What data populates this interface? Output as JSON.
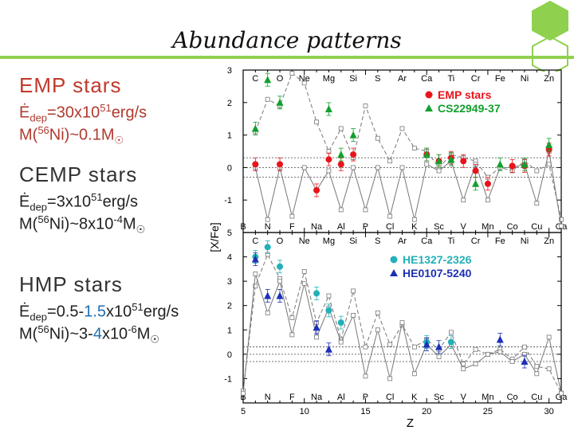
{
  "slide": {
    "title": "Abundance patterns",
    "accent_color": "#8fd14f",
    "emp": {
      "heading": "EMP stars",
      "edep_sym": "Ė",
      "edep_sub": "dep",
      "edep_mid": "=30x10",
      "edep_exp": "51",
      "edep_unit": "erg/s",
      "m_pre": "M(",
      "m_iso": "56",
      "m_post": "Ni)~0.1M",
      "sun": "☉"
    },
    "cemp": {
      "heading": "CEMP stars",
      "edep_sym": "Ė",
      "edep_sub": "dep",
      "edep_mid": "=3x10",
      "edep_exp": "51",
      "edep_unit": "erg/s",
      "m_pre": "M(",
      "m_iso": "56",
      "m_post": "Ni)~8x10",
      "m_exp": "-4",
      "m_unit": "M",
      "sun": "☉"
    },
    "hmp": {
      "heading": "HMP stars",
      "edep_sym": "Ė",
      "edep_sub": "dep",
      "edep_a": "=0.5-",
      "edep_b": "1.5",
      "edep_c": "x10",
      "edep_exp": "51",
      "edep_unit": "erg/s",
      "m_pre": "M(",
      "m_iso": "56",
      "m_post": "Ni)~3-",
      "m_b": "4",
      "m_c": "x10",
      "m_exp": "-6",
      "m_unit": "M",
      "sun": "☉"
    }
  },
  "chart_data": [
    {
      "type": "scatter",
      "panel": "top",
      "ylabel": "[X/Fe]",
      "xlabel": "",
      "xlim": [
        5,
        31
      ],
      "ylim": [
        -2,
        3
      ],
      "yticks": [
        -1,
        0,
        1,
        2,
        3
      ],
      "ytick_labels": [
        "-1",
        "0",
        "1",
        "2",
        "3"
      ],
      "reference_lines": [
        0.3,
        0,
        -0.3
      ],
      "elements_top": [
        {
          "z": 6,
          "s": "C"
        },
        {
          "z": 8,
          "s": "O"
        },
        {
          "z": 10,
          "s": "Ne"
        },
        {
          "z": 12,
          "s": "Mg"
        },
        {
          "z": 14,
          "s": "Si"
        },
        {
          "z": 16,
          "s": "S"
        },
        {
          "z": 18,
          "s": "Ar"
        },
        {
          "z": 20,
          "s": "Ca"
        },
        {
          "z": 22,
          "s": "Ti"
        },
        {
          "z": 24,
          "s": "Cr"
        },
        {
          "z": 26,
          "s": "Fe"
        },
        {
          "z": 28,
          "s": "Ni"
        },
        {
          "z": 30,
          "s": "Zn"
        }
      ],
      "elements_bottom": [
        {
          "z": 5,
          "s": "B"
        },
        {
          "z": 7,
          "s": "N"
        },
        {
          "z": 9,
          "s": "F"
        },
        {
          "z": 11,
          "s": "Na"
        },
        {
          "z": 13,
          "s": "Al"
        },
        {
          "z": 15,
          "s": "P"
        },
        {
          "z": 17,
          "s": "Cl"
        },
        {
          "z": 19,
          "s": "K"
        },
        {
          "z": 21,
          "s": "Sc"
        },
        {
          "z": 23,
          "s": "V"
        },
        {
          "z": 25,
          "s": "Mn"
        },
        {
          "z": 27,
          "s": "Co"
        },
        {
          "z": 29,
          "s": "Cu"
        },
        {
          "z": 31,
          "s": "Ga"
        }
      ],
      "legend": [
        {
          "name": "EMP stars",
          "marker": "circle",
          "color": "#e8141b"
        },
        {
          "name": "CS22949-37",
          "marker": "triangle-up",
          "color": "#12a02d"
        }
      ],
      "series": [
        {
          "name": "EMP stars",
          "marker": "circle",
          "color": "#e8141b",
          "points": [
            [
              6,
              0.1
            ],
            [
              8,
              0.1
            ],
            [
              11,
              -0.7
            ],
            [
              12,
              0.25
            ],
            [
              13,
              0.1
            ],
            [
              14,
              0.4
            ],
            [
              20,
              0.4
            ],
            [
              21,
              0.2
            ],
            [
              22,
              0.3
            ],
            [
              23,
              0.2
            ],
            [
              24,
              -0.1
            ],
            [
              25,
              -0.5
            ],
            [
              27,
              0.05
            ],
            [
              28,
              0.05
            ],
            [
              30,
              0.55
            ]
          ]
        },
        {
          "name": "CS22949-37",
          "marker": "triangle-up",
          "color": "#12a02d",
          "points": [
            [
              6,
              1.2
            ],
            [
              7,
              2.7
            ],
            [
              8,
              2.0
            ],
            [
              12,
              1.8
            ],
            [
              13,
              0.4
            ],
            [
              14,
              1.0
            ],
            [
              20,
              0.4
            ],
            [
              21,
              0.2
            ],
            [
              22,
              0.25
            ],
            [
              24,
              -0.5
            ],
            [
              26,
              0.1
            ],
            [
              28,
              0.1
            ],
            [
              30,
              0.7
            ]
          ]
        },
        {
          "name": "model-dashed",
          "marker": "square-open",
          "color": "#777777",
          "points": [
            [
              6,
              1.1
            ],
            [
              7,
              2.1
            ],
            [
              8,
              1.9
            ],
            [
              9,
              2.9
            ],
            [
              10,
              2.6
            ],
            [
              11,
              1.4
            ],
            [
              12,
              0.5
            ],
            [
              13,
              1.2
            ],
            [
              14,
              0.3
            ],
            [
              15,
              1.9
            ],
            [
              16,
              0.9
            ],
            [
              17,
              0.2
            ],
            [
              18,
              1.2
            ],
            [
              19,
              0.6
            ],
            [
              20,
              0.5
            ],
            [
              21,
              0.0
            ],
            [
              22,
              0.4
            ],
            [
              23,
              0.3
            ],
            [
              24,
              0.2
            ],
            [
              25,
              -0.3
            ],
            [
              26,
              0.0
            ],
            [
              27,
              -0.1
            ],
            [
              28,
              0.2
            ],
            [
              29,
              -0.1
            ],
            [
              30,
              0.1
            ],
            [
              31,
              -1.6
            ]
          ]
        },
        {
          "name": "model-solid",
          "marker": "square-open",
          "color": "#777777",
          "points": [
            [
              6,
              0.0
            ],
            [
              7,
              -1.6
            ],
            [
              8,
              0.0
            ],
            [
              9,
              -1.5
            ],
            [
              10,
              0.0
            ],
            [
              11,
              -0.7
            ],
            [
              12,
              -0.1
            ],
            [
              13,
              -1.3
            ],
            [
              14,
              0.0
            ],
            [
              15,
              -1.3
            ],
            [
              16,
              0.0
            ],
            [
              17,
              -1.5
            ],
            [
              18,
              0.0
            ],
            [
              19,
              -1.6
            ],
            [
              20,
              0.1
            ],
            [
              21,
              -0.1
            ],
            [
              22,
              0.2
            ],
            [
              23,
              -1.0
            ],
            [
              24,
              0.1
            ],
            [
              25,
              -1.0
            ],
            [
              26,
              0.0
            ],
            [
              27,
              0.0
            ],
            [
              28,
              0.1
            ],
            [
              29,
              -1.1
            ],
            [
              30,
              0.5
            ],
            [
              31,
              -1.8
            ]
          ]
        }
      ]
    },
    {
      "type": "scatter",
      "panel": "bottom",
      "ylabel": "[X/Fe]",
      "xlabel": "Z",
      "xlim": [
        5,
        31
      ],
      "ylim": [
        -2,
        5
      ],
      "xticks": [
        5,
        10,
        15,
        20,
        25,
        30
      ],
      "xtick_labels": [
        "5",
        "10",
        "15",
        "20",
        "25",
        "30"
      ],
      "yticks": [
        -1,
        0,
        1,
        2,
        3,
        4,
        5
      ],
      "ytick_labels": [
        "-1",
        "0",
        "1",
        "2",
        "3",
        "4",
        "5"
      ],
      "reference_lines": [
        0.3,
        0,
        -0.3
      ],
      "legend": [
        {
          "name": "HE1327-2326",
          "marker": "circle",
          "color": "#22b0b8"
        },
        {
          "name": "HE0107-5240",
          "marker": "triangle-up",
          "color": "#1c2fb8"
        }
      ],
      "series": [
        {
          "name": "HE1327-2326",
          "marker": "circle",
          "color": "#22b0b8",
          "points": [
            [
              6,
              4.0
            ],
            [
              7,
              4.4
            ],
            [
              8,
              3.6
            ],
            [
              11,
              2.5
            ],
            [
              12,
              1.8
            ],
            [
              13,
              1.3
            ],
            [
              20,
              0.5
            ],
            [
              22,
              0.5
            ]
          ]
        },
        {
          "name": "HE0107-5240",
          "marker": "triangle-up",
          "color": "#1c2fb8",
          "points": [
            [
              6,
              3.9
            ],
            [
              7,
              2.4
            ],
            [
              8,
              2.4
            ],
            [
              11,
              1.1
            ],
            [
              12,
              0.2
            ],
            [
              20,
              0.4
            ],
            [
              21,
              0.3
            ],
            [
              26,
              0.6
            ],
            [
              28,
              -0.3
            ]
          ]
        },
        {
          "name": "model-dashed",
          "marker": "square-open",
          "color": "#777777",
          "points": [
            [
              5,
              -1.5
            ],
            [
              6,
              2.8
            ],
            [
              7,
              4.1
            ],
            [
              8,
              3.1
            ],
            [
              9,
              1.5
            ],
            [
              10,
              3.4
            ],
            [
              11,
              1.3
            ],
            [
              12,
              2.4
            ],
            [
              13,
              0.6
            ],
            [
              14,
              2.6
            ],
            [
              15,
              0.3
            ],
            [
              16,
              1.7
            ],
            [
              17,
              0.4
            ],
            [
              18,
              1.2
            ],
            [
              19,
              0.3
            ],
            [
              20,
              0.6
            ],
            [
              21,
              0.2
            ],
            [
              22,
              0.9
            ],
            [
              23,
              -0.4
            ],
            [
              24,
              0.2
            ],
            [
              25,
              0.0
            ],
            [
              26,
              0.2
            ],
            [
              27,
              -0.2
            ],
            [
              28,
              0.3
            ],
            [
              29,
              -0.5
            ],
            [
              30,
              -0.6
            ],
            [
              31,
              -1.6
            ]
          ]
        },
        {
          "name": "model-solid",
          "marker": "square-open",
          "color": "#777777",
          "points": [
            [
              5,
              -1.6
            ],
            [
              6,
              3.3
            ],
            [
              7,
              1.7
            ],
            [
              8,
              3.0
            ],
            [
              9,
              0.8
            ],
            [
              10,
              2.9
            ],
            [
              11,
              0.7
            ],
            [
              12,
              1.9
            ],
            [
              13,
              0.5
            ],
            [
              14,
              1.6
            ],
            [
              15,
              -0.9
            ],
            [
              16,
              1.0
            ],
            [
              17,
              -1.0
            ],
            [
              18,
              1.3
            ],
            [
              19,
              -0.8
            ],
            [
              20,
              0.4
            ],
            [
              21,
              -0.1
            ],
            [
              22,
              0.4
            ],
            [
              23,
              -0.6
            ],
            [
              24,
              -0.4
            ],
            [
              25,
              0.0
            ],
            [
              26,
              0.1
            ],
            [
              27,
              -0.3
            ],
            [
              28,
              0.0
            ],
            [
              29,
              -0.8
            ],
            [
              30,
              0.7
            ],
            [
              31,
              -1.6
            ]
          ]
        }
      ]
    }
  ]
}
